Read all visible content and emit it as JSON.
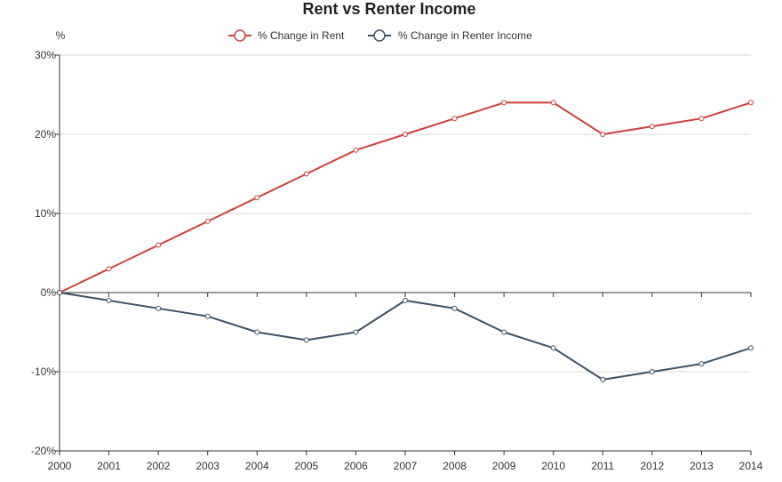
{
  "chart_data": {
    "type": "line",
    "title": "Rent vs Renter Income",
    "ylabel": "%",
    "xlabel": "",
    "x": [
      "2000",
      "2001",
      "2002",
      "2003",
      "2004",
      "2005",
      "2006",
      "2007",
      "2008",
      "2009",
      "2010",
      "2011",
      "2012",
      "2013",
      "2014"
    ],
    "ylim": [
      -20,
      30
    ],
    "yticks": [
      30,
      20,
      10,
      0,
      -10,
      -20
    ],
    "ytick_labels": [
      "30%",
      "20%",
      "10%",
      "0%",
      "-10%",
      "-20%"
    ],
    "grid": true,
    "legend_position": "top",
    "series": [
      {
        "name": "% Change in Rent",
        "color": "#d0403b",
        "values": [
          0,
          3,
          6,
          9,
          12,
          15,
          18,
          20,
          22,
          24,
          24,
          20,
          21,
          22,
          24
        ]
      },
      {
        "name": "% Change in Renter Income",
        "color": "#3d5166",
        "values": [
          0,
          -1,
          -2,
          -3,
          -5,
          -6,
          -5,
          -1,
          -2,
          -5,
          -7,
          -11,
          -10,
          -9,
          -7
        ]
      }
    ]
  }
}
